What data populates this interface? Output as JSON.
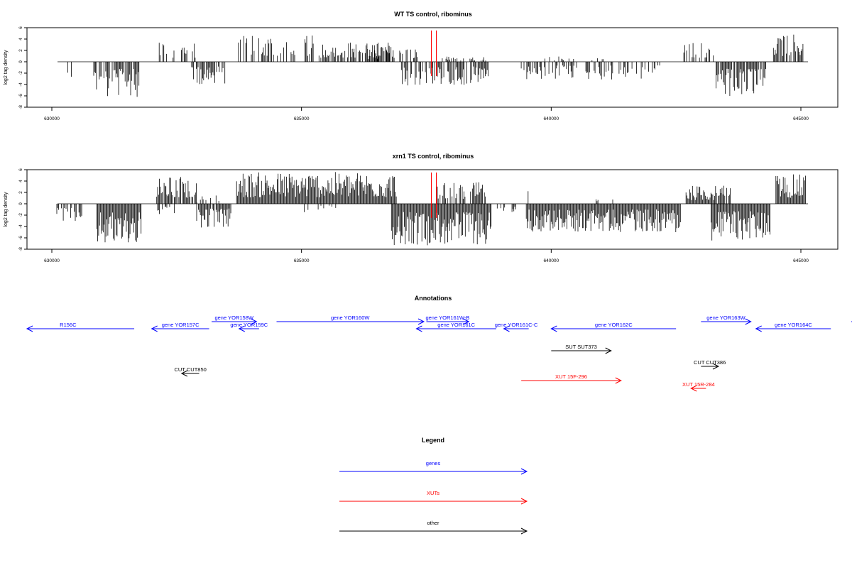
{
  "chart_data": [
    {
      "type": "bar",
      "title": "WT TS control, ribominus",
      "xlabel": "",
      "ylabel": "log2 tag density",
      "xlim": [
        630000,
        645000
      ],
      "ylim": [
        -8,
        6
      ],
      "x_ticks": [
        "630000",
        "635000",
        "640000",
        "645000"
      ],
      "y_ticks": [
        "6",
        "4",
        "2",
        "0",
        "-2",
        "-4",
        "-6",
        "-8"
      ],
      "grid": false,
      "highlight_positions": [
        637600,
        637700
      ],
      "highlight_color": "#ff0000",
      "segments": [
        {
          "x_start": 630300,
          "x_end": 630420,
          "strand": "-",
          "peak": 3.0,
          "density": 0.4
        },
        {
          "x_start": 630820,
          "x_end": 631750,
          "strand": "-",
          "peak": 6.2,
          "density": 0.8
        },
        {
          "x_start": 632150,
          "x_end": 632200,
          "strand": "-",
          "peak": 2.5,
          "density": 0.3
        },
        {
          "x_start": 632150,
          "x_end": 632900,
          "strand": "+",
          "peak": 3.6,
          "density": 0.4
        },
        {
          "x_start": 632800,
          "x_end": 633500,
          "strand": "-",
          "peak": 4.0,
          "density": 0.7
        },
        {
          "x_start": 633700,
          "x_end": 635300,
          "strand": "+",
          "peak": 5.0,
          "density": 0.5
        },
        {
          "x_start": 635350,
          "x_end": 636800,
          "strand": "+",
          "peak": 3.5,
          "density": 0.7
        },
        {
          "x_start": 636300,
          "x_end": 637400,
          "strand": "+",
          "peak": 2.4,
          "density": 0.4
        },
        {
          "x_start": 637000,
          "x_end": 638750,
          "strand": "-",
          "peak": 4.2,
          "density": 0.7
        },
        {
          "x_start": 637800,
          "x_end": 638700,
          "strand": "+",
          "peak": 1.0,
          "density": 0.3
        },
        {
          "x_start": 639400,
          "x_end": 642200,
          "strand": "-",
          "peak": 3.2,
          "density": 0.45
        },
        {
          "x_start": 639800,
          "x_end": 641200,
          "strand": "+",
          "peak": 1.0,
          "density": 0.2
        },
        {
          "x_start": 642600,
          "x_end": 643300,
          "strand": "+",
          "peak": 3.4,
          "density": 0.4
        },
        {
          "x_start": 643300,
          "x_end": 644300,
          "strand": "-",
          "peak": 6.2,
          "density": 0.9
        },
        {
          "x_start": 644450,
          "x_end": 645050,
          "strand": "+",
          "peak": 4.9,
          "density": 0.8
        }
      ]
    },
    {
      "type": "bar",
      "title": "xrn1 TS control, ribominus",
      "xlabel": "",
      "ylabel": "log2 tag density",
      "xlim": [
        630000,
        645000
      ],
      "ylim": [
        -8,
        6
      ],
      "x_ticks": [
        "630000",
        "635000",
        "640000",
        "645000"
      ],
      "y_ticks": [
        "6",
        "4",
        "2",
        "0",
        "-2",
        "-4",
        "-6",
        "-8"
      ],
      "grid": false,
      "highlight_positions": [
        637600,
        637700
      ],
      "highlight_color": "#ff0000",
      "segments": [
        {
          "x_start": 630100,
          "x_end": 630600,
          "strand": "-",
          "peak": 3.0,
          "density": 0.5
        },
        {
          "x_start": 630550,
          "x_end": 630600,
          "strand": "+",
          "peak": 1.8,
          "density": 0.3
        },
        {
          "x_start": 630900,
          "x_end": 631800,
          "strand": "-",
          "peak": 7.5,
          "density": 1.0
        },
        {
          "x_start": 632100,
          "x_end": 632900,
          "strand": "+",
          "peak": 4.8,
          "density": 0.8
        },
        {
          "x_start": 632100,
          "x_end": 632500,
          "strand": "-",
          "peak": 2.0,
          "density": 0.4
        },
        {
          "x_start": 632900,
          "x_end": 633600,
          "strand": "-",
          "peak": 4.2,
          "density": 0.9
        },
        {
          "x_start": 632900,
          "x_end": 633400,
          "strand": "+",
          "peak": 1.5,
          "density": 0.3
        },
        {
          "x_start": 633700,
          "x_end": 636900,
          "strand": "+",
          "peak": 5.6,
          "density": 1.0
        },
        {
          "x_start": 635000,
          "x_end": 635800,
          "strand": "-",
          "peak": 1.5,
          "density": 0.2
        },
        {
          "x_start": 636800,
          "x_end": 638800,
          "strand": "-",
          "peak": 7.3,
          "density": 1.0
        },
        {
          "x_start": 637700,
          "x_end": 638700,
          "strand": "+",
          "peak": 3.8,
          "density": 0.7
        },
        {
          "x_start": 638900,
          "x_end": 639300,
          "strand": "-",
          "peak": 1.5,
          "density": 0.3
        },
        {
          "x_start": 639500,
          "x_end": 639700,
          "strand": "+",
          "peak": 2.8,
          "density": 0.5
        },
        {
          "x_start": 639500,
          "x_end": 642600,
          "strand": "-",
          "peak": 5.0,
          "density": 1.0
        },
        {
          "x_start": 640900,
          "x_end": 641300,
          "strand": "+",
          "peak": 1.0,
          "density": 0.2
        },
        {
          "x_start": 642700,
          "x_end": 643600,
          "strand": "+",
          "peak": 3.2,
          "density": 0.9
        },
        {
          "x_start": 643200,
          "x_end": 644400,
          "strand": "-",
          "peak": 6.5,
          "density": 1.0
        },
        {
          "x_start": 644500,
          "x_end": 645100,
          "strand": "+",
          "peak": 5.2,
          "density": 1.0
        }
      ]
    }
  ],
  "annotations": {
    "title": "Annotations",
    "features": [
      {
        "label": "R156C",
        "x_start": 629000,
        "x_end": 631650,
        "strand": "-",
        "row": 1,
        "type": "gene"
      },
      {
        "label": "gene YOR157C",
        "x_start": 632000,
        "x_end": 633150,
        "strand": "-",
        "row": 1,
        "type": "gene"
      },
      {
        "label": "gene YOR158W",
        "x_start": 633200,
        "x_end": 634100,
        "strand": "+",
        "row": 0,
        "type": "gene"
      },
      {
        "label": "gene YOR159C",
        "x_start": 633750,
        "x_end": 634150,
        "strand": "-",
        "row": 1,
        "type": "gene"
      },
      {
        "label": "gene YOR160W",
        "x_start": 634500,
        "x_end": 637450,
        "strand": "+",
        "row": 0,
        "type": "gene"
      },
      {
        "label": "gene YOR161W-B",
        "x_start": 637500,
        "x_end": 638350,
        "strand": "+",
        "row": 0,
        "type": "gene"
      },
      {
        "label": "gene YOR161C",
        "x_start": 637300,
        "x_end": 638900,
        "strand": "-",
        "row": 1,
        "type": "gene"
      },
      {
        "label": "gene YOR161C-C",
        "x_start": 639050,
        "x_end": 639550,
        "strand": "-",
        "row": 1,
        "type": "gene"
      },
      {
        "label": "gene YOR162C",
        "x_start": 640000,
        "x_end": 642500,
        "strand": "-",
        "row": 1,
        "type": "gene"
      },
      {
        "label": "gene YOR163W",
        "x_start": 643000,
        "x_end": 644000,
        "strand": "+",
        "row": 0,
        "type": "gene"
      },
      {
        "label": "gene YOR164C",
        "x_start": 644100,
        "x_end": 645600,
        "strand": "-",
        "row": 1,
        "type": "gene"
      },
      {
        "label": "gene YOR",
        "x_start": 646250,
        "x_end": 648500,
        "strand": "+",
        "row": 0,
        "type": "gene"
      },
      {
        "label": "SUT SUT373",
        "x_start": 640000,
        "x_end": 641200,
        "strand": "+",
        "row": 2,
        "type": "other"
      },
      {
        "label": "CUT CUT850",
        "x_start": 632600,
        "x_end": 632950,
        "strand": "-",
        "row": 3,
        "type": "other"
      },
      {
        "label": "CUT CUT386",
        "x_start": 643000,
        "x_end": 643350,
        "strand": "+",
        "row": 4,
        "type": "other"
      },
      {
        "label": "XUT 15F-296",
        "x_start": 639400,
        "x_end": 641400,
        "strand": "+",
        "row": 5,
        "type": "xut"
      },
      {
        "label": "XUT 15R-284",
        "x_start": 642800,
        "x_end": 643100,
        "strand": "-",
        "row": 6,
        "type": "xut"
      }
    ]
  },
  "legend": {
    "title": "Legend",
    "items": [
      {
        "label": "genes",
        "color": "#0000ff"
      },
      {
        "label": "XUTs",
        "color": "#ff0000"
      },
      {
        "label": "other",
        "color": "#000000"
      }
    ]
  },
  "colors": {
    "gene": "#0000ff",
    "xut": "#ff0000",
    "other": "#000000",
    "highlight": "#ff0000"
  }
}
